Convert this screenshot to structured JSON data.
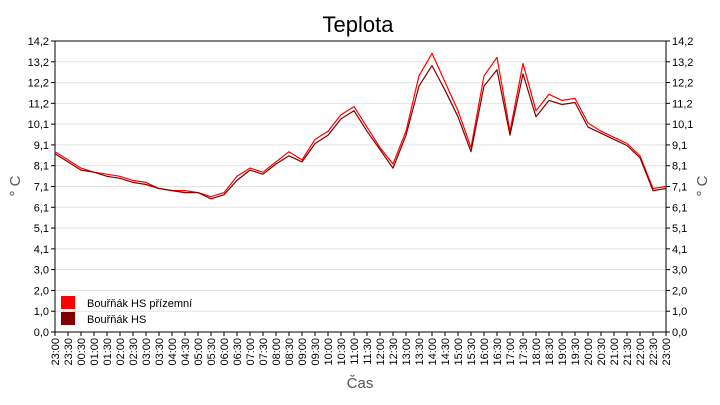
{
  "chart_data": {
    "type": "line",
    "title": "Teplota",
    "xlabel": "Čas",
    "ylabel": "° C",
    "ylim": [
      0,
      14.2
    ],
    "y_ticks": [
      "0,0",
      "1,0",
      "2,0",
      "3,0",
      "4,1",
      "5,1",
      "6,1",
      "7,1",
      "8,1",
      "9,1",
      "10,1",
      "11,2",
      "12,2",
      "13,2",
      "14,2"
    ],
    "x_ticks": [
      "23:00",
      "23:30",
      "00:30",
      "01:00",
      "01:30",
      "02:00",
      "02:30",
      "03:00",
      "03:30",
      "04:00",
      "04:30",
      "05:00",
      "05:30",
      "06:00",
      "06:30",
      "07:00",
      "07:30",
      "08:00",
      "08:30",
      "09:00",
      "09:30",
      "10:00",
      "10:30",
      "11:00",
      "11:30",
      "12:00",
      "12:30",
      "13:00",
      "13:30",
      "14:00",
      "14:30",
      "15:00",
      "15:30",
      "16:00",
      "16:30",
      "17:00",
      "17:30",
      "18:00",
      "18:30",
      "19:00",
      "19:30",
      "20:00",
      "20:30",
      "21:00",
      "21:30",
      "22:00",
      "22:30",
      "23:00"
    ],
    "grid": true,
    "legend_position": "bottom-left",
    "series": [
      {
        "name": "Bouřňák HS přízemní",
        "color": "#ff0000",
        "points": [
          [
            0,
            8.8
          ],
          [
            1,
            8.4
          ],
          [
            2,
            8.0
          ],
          [
            3,
            7.8
          ],
          [
            4,
            7.7
          ],
          [
            5,
            7.6
          ],
          [
            6,
            7.4
          ],
          [
            7,
            7.3
          ],
          [
            8,
            7.0
          ],
          [
            9,
            6.9
          ],
          [
            10,
            6.9
          ],
          [
            11,
            6.8
          ],
          [
            12,
            6.6
          ],
          [
            13,
            6.8
          ],
          [
            14,
            7.6
          ],
          [
            15,
            8.0
          ],
          [
            16,
            7.8
          ],
          [
            17,
            8.3
          ],
          [
            18,
            8.8
          ],
          [
            19,
            8.4
          ],
          [
            20,
            9.4
          ],
          [
            21,
            9.8
          ],
          [
            22,
            10.6
          ],
          [
            23,
            11.0
          ],
          [
            24,
            10.0
          ],
          [
            25,
            9.0
          ],
          [
            26,
            8.2
          ],
          [
            27,
            9.8
          ],
          [
            28,
            12.5
          ],
          [
            29,
            13.6
          ],
          [
            30,
            12.2
          ],
          [
            31,
            10.8
          ],
          [
            32,
            9.0
          ],
          [
            33,
            12.5
          ],
          [
            34,
            13.4
          ],
          [
            35,
            9.8
          ],
          [
            36,
            13.1
          ],
          [
            37,
            10.8
          ],
          [
            38,
            11.6
          ],
          [
            39,
            11.3
          ],
          [
            40,
            11.4
          ],
          [
            41,
            10.2
          ],
          [
            42,
            9.8
          ],
          [
            43,
            9.5
          ],
          [
            44,
            9.2
          ],
          [
            45,
            8.6
          ],
          [
            46,
            7.0
          ],
          [
            47,
            7.1
          ]
        ]
      },
      {
        "name": "Bouřňák HS",
        "color": "#800000",
        "points": [
          [
            0,
            8.7
          ],
          [
            1,
            8.3
          ],
          [
            2,
            7.9
          ],
          [
            3,
            7.8
          ],
          [
            4,
            7.6
          ],
          [
            5,
            7.5
          ],
          [
            6,
            7.3
          ],
          [
            7,
            7.2
          ],
          [
            8,
            7.0
          ],
          [
            9,
            6.9
          ],
          [
            10,
            6.8
          ],
          [
            11,
            6.8
          ],
          [
            12,
            6.5
          ],
          [
            13,
            6.7
          ],
          [
            14,
            7.4
          ],
          [
            15,
            7.9
          ],
          [
            16,
            7.7
          ],
          [
            17,
            8.2
          ],
          [
            18,
            8.6
          ],
          [
            19,
            8.3
          ],
          [
            20,
            9.2
          ],
          [
            21,
            9.6
          ],
          [
            22,
            10.4
          ],
          [
            23,
            10.8
          ],
          [
            24,
            9.8
          ],
          [
            25,
            8.9
          ],
          [
            26,
            8.0
          ],
          [
            27,
            9.6
          ],
          [
            28,
            12.0
          ],
          [
            29,
            13.0
          ],
          [
            30,
            11.8
          ],
          [
            31,
            10.5
          ],
          [
            32,
            8.8
          ],
          [
            33,
            12.0
          ],
          [
            34,
            12.8
          ],
          [
            35,
            9.6
          ],
          [
            36,
            12.6
          ],
          [
            37,
            10.5
          ],
          [
            38,
            11.3
          ],
          [
            39,
            11.1
          ],
          [
            40,
            11.2
          ],
          [
            41,
            10.0
          ],
          [
            42,
            9.7
          ],
          [
            43,
            9.4
          ],
          [
            44,
            9.1
          ],
          [
            45,
            8.5
          ],
          [
            46,
            6.9
          ],
          [
            47,
            7.0
          ]
        ]
      }
    ]
  }
}
